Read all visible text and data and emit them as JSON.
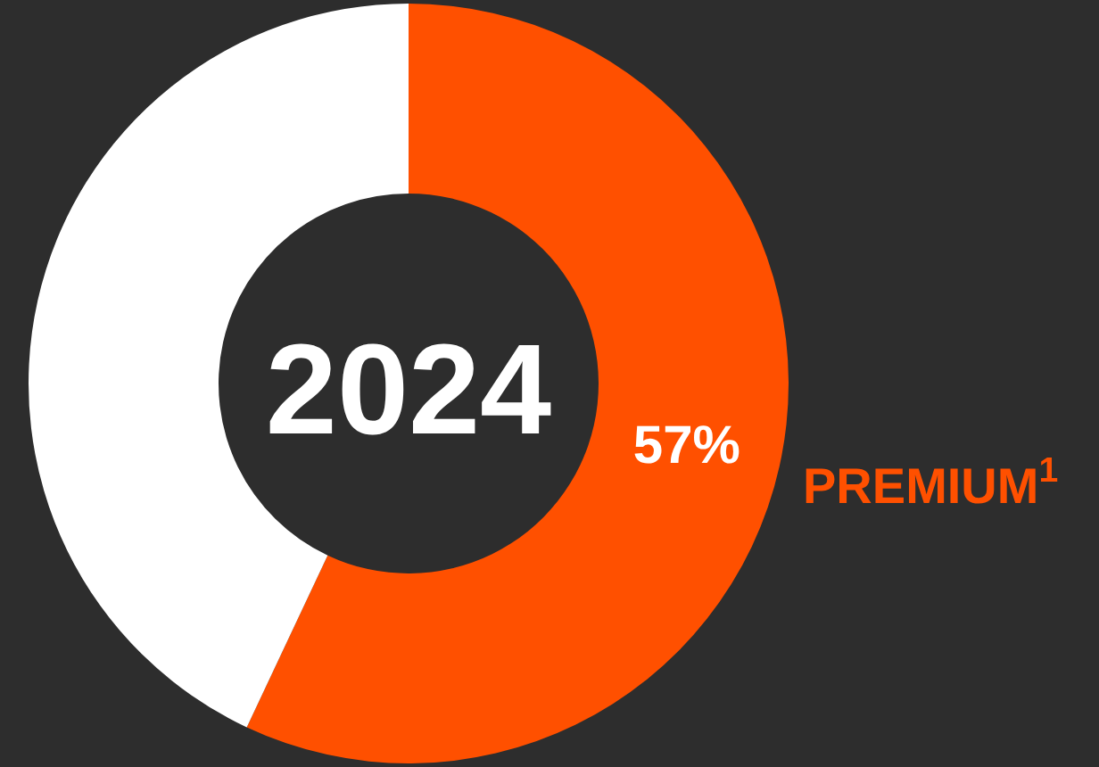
{
  "chart_data": {
    "type": "donut",
    "title": "2024",
    "categories": [
      "PREMIUM$^{1}$",
      null
    ],
    "values": [
      57,
      43
    ],
    "colors": [
      "#ff5000",
      "#ffffff"
    ],
    "value_labels": [
      "57%",
      null
    ],
    "legend": false
  }
}
